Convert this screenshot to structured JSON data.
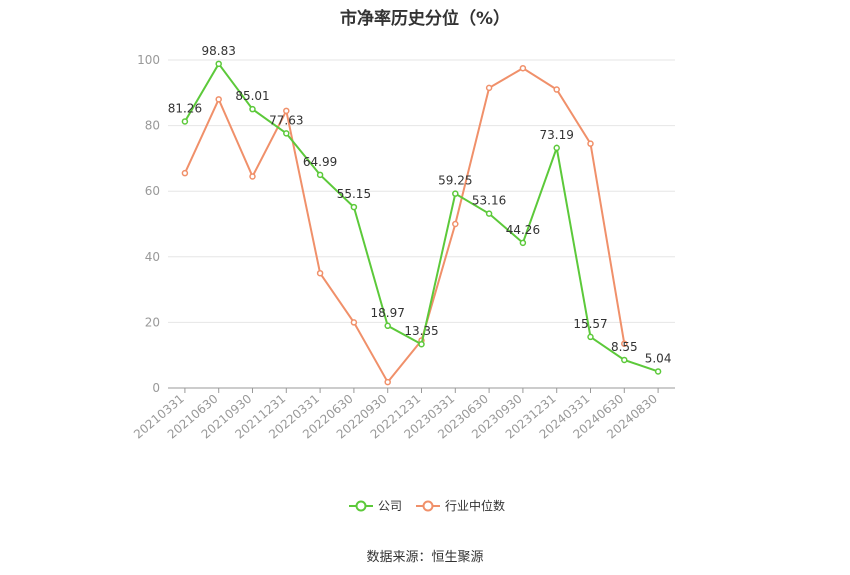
{
  "chart_data": {
    "type": "line",
    "title": "市净率历史分位（%）",
    "source": "数据来源：恒生聚源",
    "x": [
      "20210331",
      "20210630",
      "20210930",
      "20211231",
      "20220331",
      "20220630",
      "20220930",
      "20221231",
      "20230331",
      "20230630",
      "20230930",
      "20231231",
      "20240331",
      "20240630",
      "20240830"
    ],
    "ylim": [
      0,
      100
    ],
    "yticks": [
      0,
      20,
      40,
      60,
      80,
      100
    ],
    "grid": true,
    "legend_position": "bottom-center",
    "series": [
      {
        "name": "公司",
        "color": "#5cc93a",
        "values": [
          81.26,
          98.83,
          85.01,
          77.63,
          64.99,
          55.15,
          18.97,
          13.35,
          59.25,
          53.16,
          44.26,
          73.19,
          15.57,
          8.55,
          5.04
        ],
        "labels": [
          "81.26",
          "98.83",
          "85.01",
          "77.63",
          "64.99",
          "55.15",
          "18.97",
          "13.35",
          "59.25",
          "53.16",
          "44.26",
          "73.19",
          "15.57",
          "8.55",
          "5.04"
        ]
      },
      {
        "name": "行业中位数",
        "color": "#f0906a",
        "values": [
          65.5,
          88.0,
          64.5,
          84.5,
          35.0,
          20.0,
          1.8,
          14.5,
          50.0,
          91.5,
          97.5,
          91.0,
          74.5,
          13.5,
          null
        ]
      }
    ]
  }
}
